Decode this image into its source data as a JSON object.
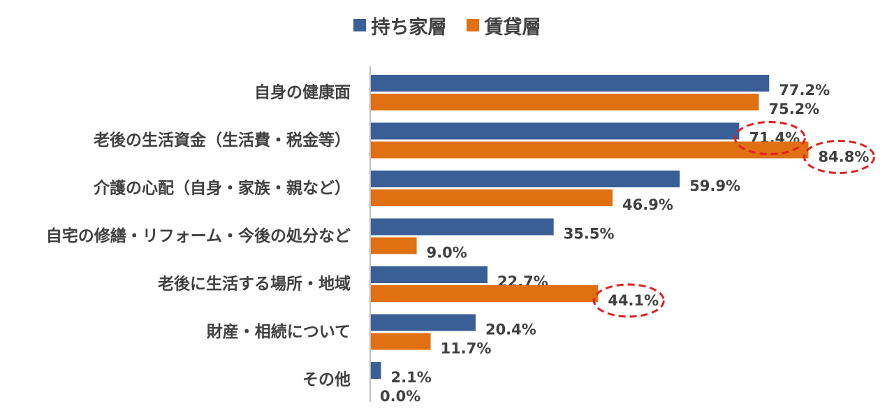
{
  "chart_data": {
    "type": "bar",
    "orientation": "horizontal",
    "categories": [
      "自身の健康面",
      "老後の生活資金（生活費・税金等）",
      "介護の心配（自身・家族・親など）",
      "自宅の修繕・リフォーム・今後の処分など",
      "老後に生活する場所・地域",
      "財産・相続について",
      "その他"
    ],
    "series": [
      {
        "name": "持ち家層",
        "color": "#3A5F96",
        "values": [
          77.2,
          71.4,
          59.9,
          35.5,
          22.7,
          20.4,
          2.1
        ],
        "labels": [
          "77.2%",
          "71.4%",
          "59.9%",
          "35.5%",
          "22.7%",
          "20.4%",
          "2.1%"
        ]
      },
      {
        "name": "賃貸層",
        "color": "#E07012",
        "values": [
          75.2,
          84.8,
          46.9,
          9.0,
          44.1,
          11.7,
          0.0
        ],
        "labels": [
          "75.2%",
          "84.8%",
          "46.9%",
          "9.0%",
          "44.1%",
          "11.7%",
          "0.0%"
        ]
      }
    ],
    "xlim": [
      0,
      100
    ],
    "title": "",
    "xlabel": "",
    "ylabel": "",
    "grid": false,
    "legend_position": "top-center",
    "highlights": [
      {
        "series": 0,
        "category": 1
      },
      {
        "series": 1,
        "category": 1
      },
      {
        "series": 1,
        "category": 4
      }
    ],
    "highlight_color": "#E02020"
  }
}
